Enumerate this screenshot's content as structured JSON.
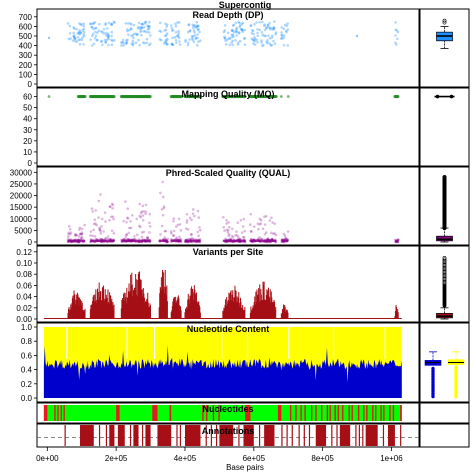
{
  "figure": {
    "title": "Supercontig",
    "xlabel": "Base pairs",
    "x_range": [
      -30000,
      1080000
    ],
    "x_ticks": [
      0,
      200000,
      400000,
      600000,
      800000,
      1000000
    ],
    "x_tick_labels": [
      "0e+00",
      "2e+05",
      "4e+05",
      "6e+05",
      "8e+05",
      "1e+06"
    ]
  },
  "colors": {
    "depth": "#1e90ff",
    "mq": "#228b22",
    "qual": "#8b008b",
    "variants": "#a50f15",
    "nuc_yellow": "#ffff00",
    "nuc_blue": "#0000cd",
    "nucleotides_green": "#00ff00",
    "nucleotides_red": "#e41a1c",
    "annotations_red": "#a50f15",
    "boxplot_blue": "#1e90ff"
  },
  "chart_data": [
    {
      "type": "scatter",
      "title": "Read Depth (DP)",
      "ylim": [
        0,
        750
      ],
      "y_ticks": [
        0,
        100,
        200,
        300,
        400,
        500,
        600,
        700
      ],
      "segments": [
        [
          60000,
          110000
        ],
        [
          125000,
          195000
        ],
        [
          215000,
          300000
        ],
        [
          325000,
          350000
        ],
        [
          360000,
          390000
        ],
        [
          400000,
          445000
        ],
        [
          510000,
          575000
        ],
        [
          590000,
          665000
        ],
        [
          680000,
          700000
        ],
        [
          1010000,
          1020000
        ]
      ],
      "typical_range": [
        400,
        650
      ],
      "isolated_points": [
        {
          "x": 5000,
          "y": 480
        },
        {
          "x": 900000,
          "y": 500
        }
      ],
      "boxplot": {
        "min": 370,
        "q1": 450,
        "median": 500,
        "q3": 540,
        "max": 600,
        "outliers": [
          640,
          660
        ]
      }
    },
    {
      "type": "scatter",
      "title": "Mapping Quality (MQ)",
      "ylim": [
        0,
        65
      ],
      "y_ticks": [
        0,
        10,
        20,
        30,
        40,
        50,
        60
      ],
      "value": 60,
      "segments": [
        [
          90000,
          110000
        ],
        [
          125000,
          195000
        ],
        [
          215000,
          300000
        ],
        [
          360000,
          390000
        ],
        [
          400000,
          445000
        ],
        [
          510000,
          575000
        ],
        [
          590000,
          665000
        ],
        [
          1010000,
          1020000
        ]
      ],
      "isolated_points": [
        {
          "x": 5000,
          "y": 60
        },
        {
          "x": 680000,
          "y": 60
        },
        {
          "x": 700000,
          "y": 60
        }
      ],
      "boxplot": {
        "min": 60,
        "q1": 60,
        "median": 60,
        "q3": 60,
        "max": 60,
        "outliers": []
      }
    },
    {
      "type": "scatter",
      "title": "Phred-Scaled Quality (QUAL)",
      "ylim": [
        0,
        31000
      ],
      "y_ticks": [
        0,
        5000,
        10000,
        15000,
        20000,
        25000,
        30000
      ],
      "segments": [
        [
          60000,
          110000
        ],
        [
          125000,
          195000
        ],
        [
          215000,
          300000
        ],
        [
          325000,
          350000
        ],
        [
          360000,
          390000
        ],
        [
          400000,
          445000
        ],
        [
          510000,
          575000
        ],
        [
          590000,
          665000
        ],
        [
          680000,
          700000
        ],
        [
          1010000,
          1020000
        ]
      ],
      "peak_values": [
        8000,
        21000,
        19000,
        27000,
        12000,
        15000,
        11000,
        12000,
        5000,
        2000
      ],
      "boxplot": {
        "min": 0,
        "q1": 500,
        "median": 1200,
        "q3": 2500,
        "max": 6000,
        "outlier_max": 28000
      }
    },
    {
      "type": "bar",
      "title": "Variants per Site",
      "ylim": [
        0,
        0.125
      ],
      "y_ticks": [
        0.0,
        0.02,
        0.04,
        0.06,
        0.08,
        0.1,
        0.12
      ],
      "y_tick_labels": [
        "0.00",
        "0.02",
        "0.04",
        "0.06",
        "0.08",
        "0.10",
        "0.12"
      ],
      "segments": [
        [
          60000,
          110000
        ],
        [
          125000,
          195000
        ],
        [
          215000,
          300000
        ],
        [
          325000,
          350000
        ],
        [
          360000,
          390000
        ],
        [
          400000,
          445000
        ],
        [
          510000,
          575000
        ],
        [
          590000,
          665000
        ],
        [
          680000,
          700000
        ],
        [
          1010000,
          1020000
        ]
      ],
      "peak_values": [
        0.055,
        0.07,
        0.09,
        0.11,
        0.05,
        0.065,
        0.06,
        0.07,
        0.03,
        0.03
      ],
      "boxplot": {
        "min": 0.0,
        "q1": 0.002,
        "median": 0.005,
        "q3": 0.01,
        "max": 0.02,
        "outlier_max": 0.11
      }
    },
    {
      "type": "area",
      "title": "Nucleotide Content",
      "ylim": [
        0,
        1
      ],
      "y_ticks": [
        0.0,
        0.2,
        0.4,
        0.6,
        0.8,
        1.0
      ],
      "y_tick_labels": [
        "0.0",
        "0.2",
        "0.4",
        "0.6",
        "0.8",
        "1.0"
      ],
      "covered_range": [
        -10000,
        1030000
      ],
      "series": [
        {
          "values": [
            0.44,
            0.52
          ]
        },
        {
          "values": [
            0.56,
            0.48
          ]
        }
      ],
      "boxplots": [
        {
          "min": 0.0,
          "q1": 0.46,
          "median": 0.5,
          "q3": 0.53,
          "max": 0.65
        },
        {
          "min": 0.0,
          "q1": 0.47,
          "median": 0.5,
          "q3": 0.54,
          "max": 0.65
        }
      ]
    },
    {
      "type": "heatmap",
      "title": "Nucleotides",
      "red_segments": [
        [
          -10000,
          0
        ],
        [
          20000,
          60000
        ],
        [
          200000,
          210000
        ],
        [
          305000,
          320000
        ],
        [
          355000,
          360000
        ],
        [
          450000,
          505000
        ],
        [
          575000,
          590000
        ],
        [
          670000,
          680000
        ],
        [
          705000,
          1010000
        ],
        [
          1025000,
          1030000
        ]
      ]
    },
    {
      "type": "heatmap",
      "title": "Annotations",
      "blocks": [
        [
          95000,
          135000
        ],
        [
          180000,
          195000
        ],
        [
          205000,
          225000
        ],
        [
          250000,
          265000
        ],
        [
          285000,
          300000
        ],
        [
          320000,
          360000
        ],
        [
          400000,
          445000
        ],
        [
          500000,
          540000
        ],
        [
          570000,
          600000
        ],
        [
          630000,
          660000
        ],
        [
          780000,
          810000
        ],
        [
          850000,
          880000
        ],
        [
          925000,
          960000
        ],
        [
          990000,
          1010000
        ]
      ],
      "lines": [
        50000,
        150000,
        170000,
        240000,
        275000,
        375000,
        385000,
        460000,
        475000,
        490000,
        555000,
        615000,
        680000,
        695000,
        710000,
        730000,
        745000,
        760000,
        825000,
        840000,
        895000,
        905000,
        915000,
        975000,
        1025000
      ]
    }
  ]
}
